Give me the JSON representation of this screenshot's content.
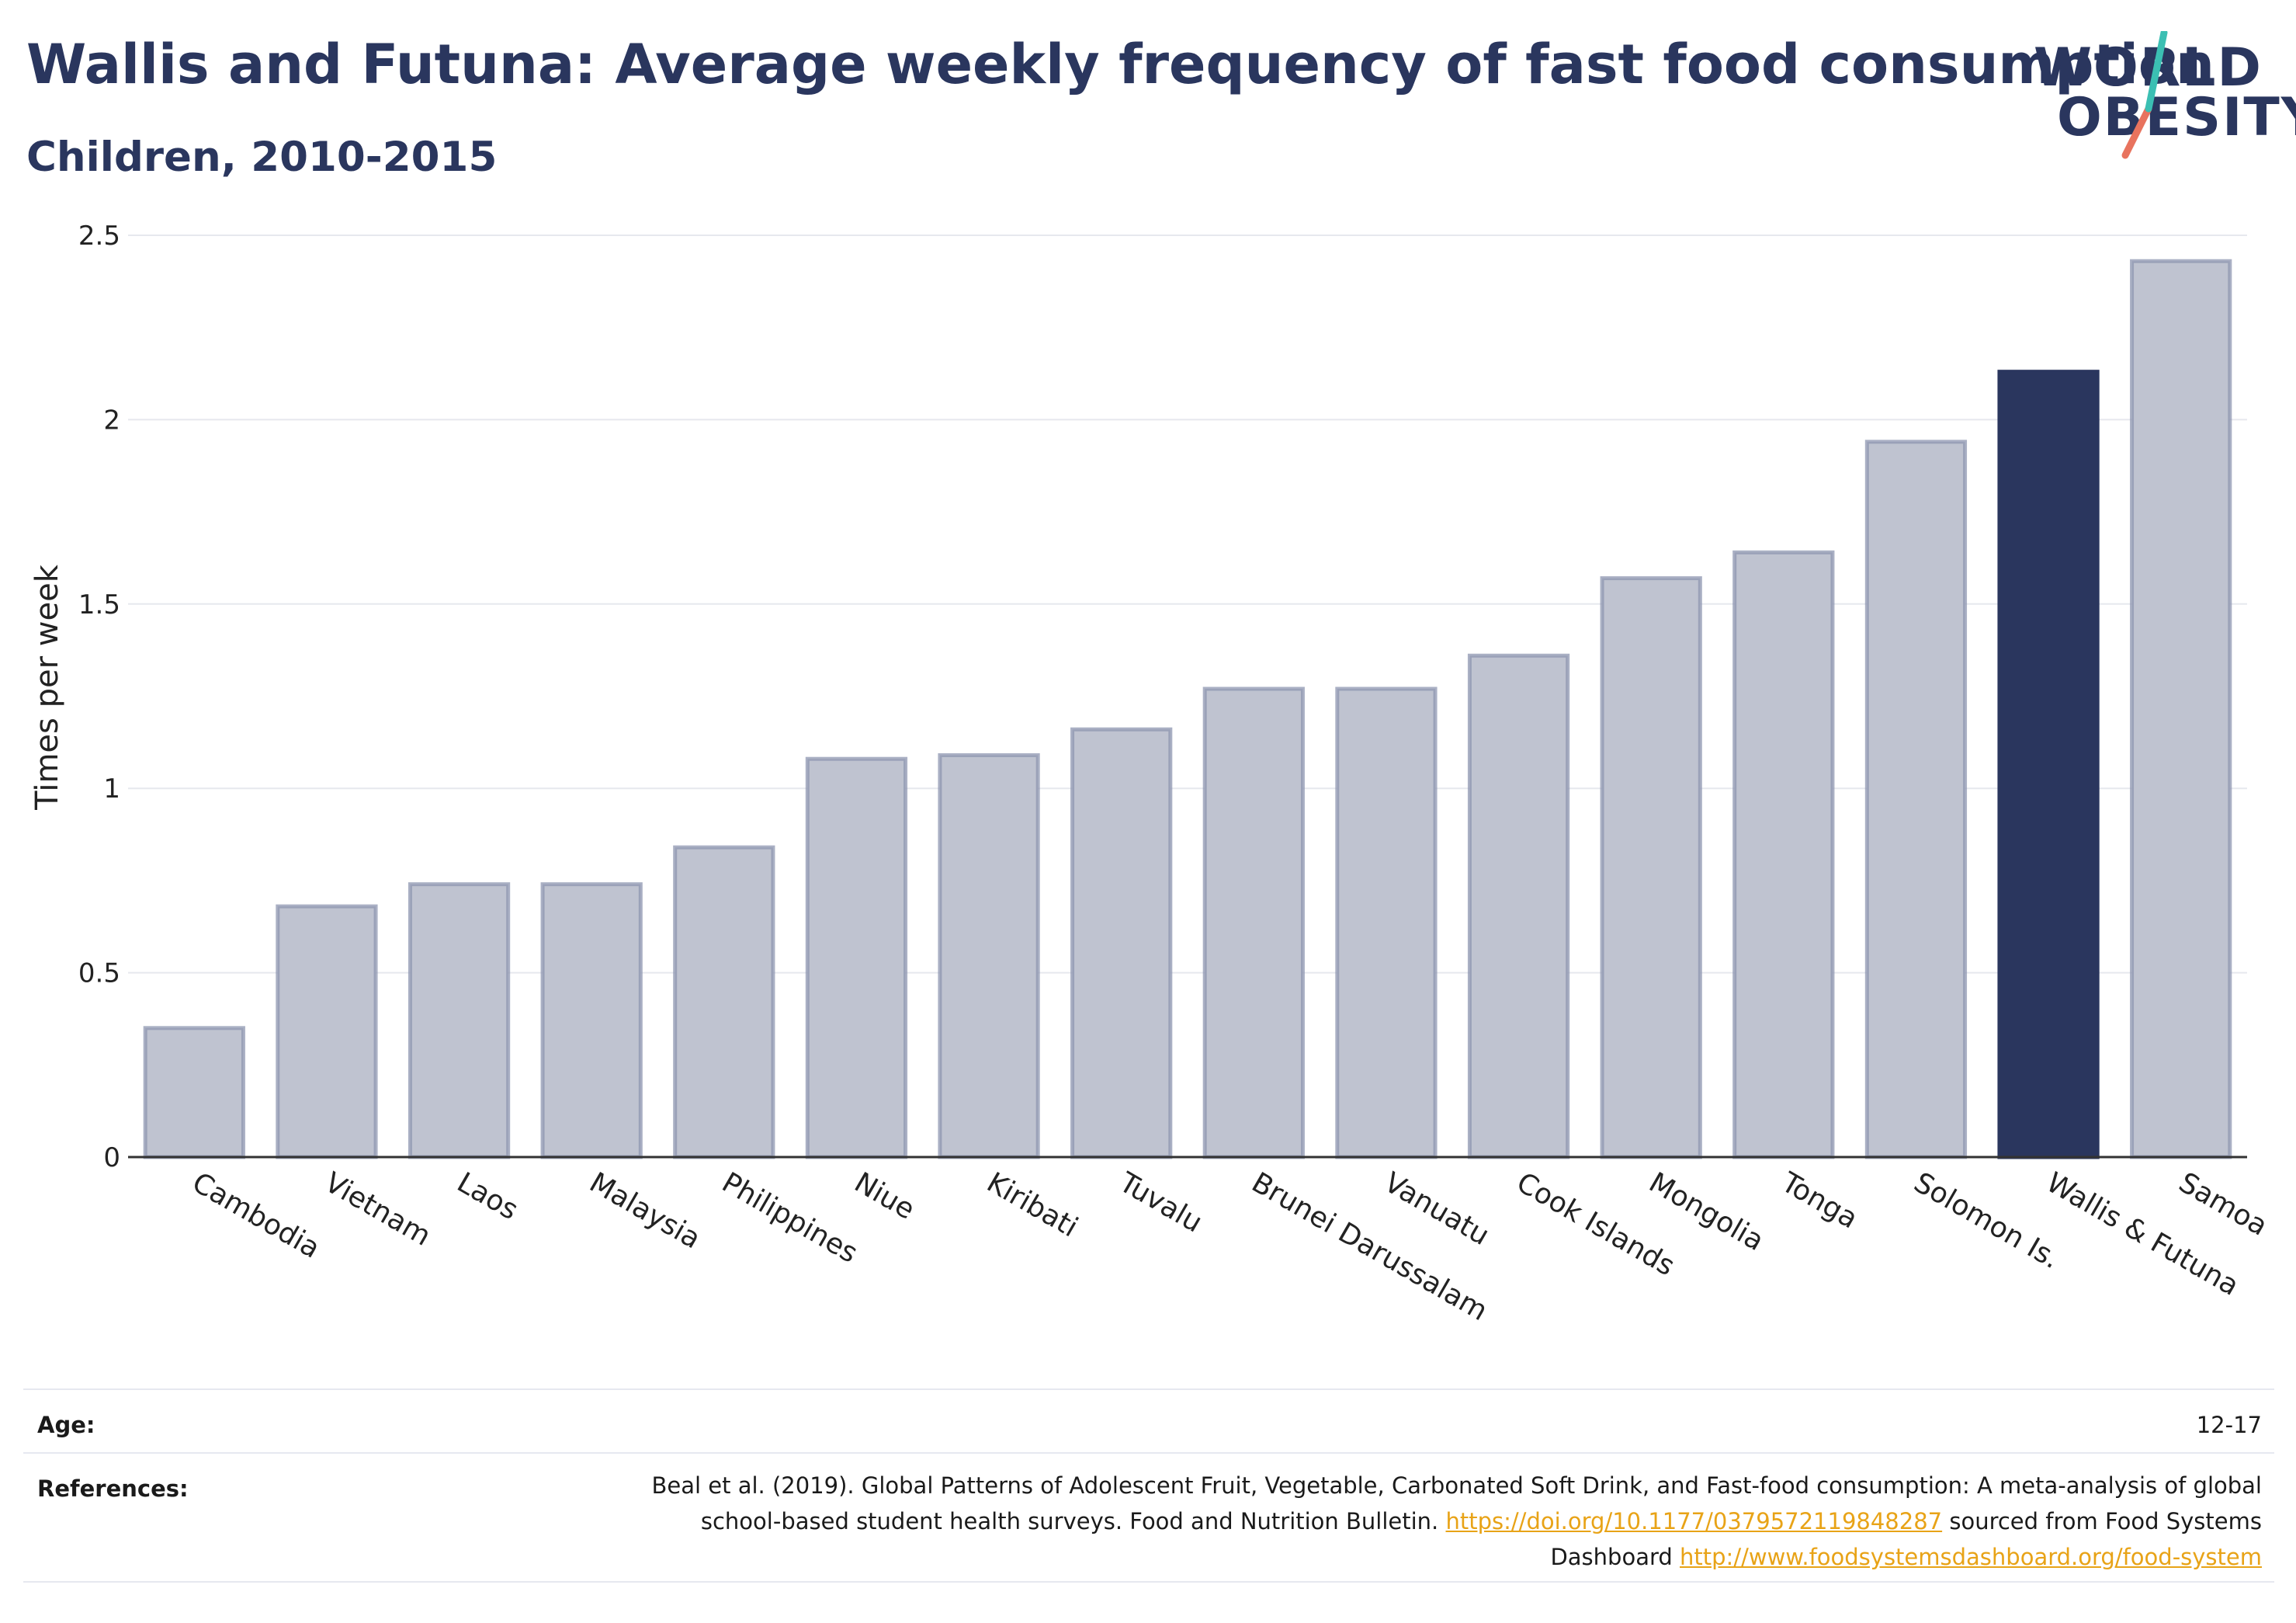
{
  "header": {
    "title": "Wallis and Futuna: Average weekly frequency of fast food consumption",
    "subtitle": "Children, 2010-2015"
  },
  "logo": {
    "line1": "WORLD",
    "line2": "OBESITY"
  },
  "chart_data": {
    "type": "bar",
    "ylabel": "Times per week",
    "xlabel": "",
    "ylim": [
      0,
      2.5
    ],
    "yticks": [
      "0",
      "0.5",
      "1",
      "1.5",
      "2",
      "2.5"
    ],
    "grid": true,
    "categories": [
      "Cambodia",
      "Vietnam",
      "Laos",
      "Malaysia",
      "Philippines",
      "Niue",
      "Kiribati",
      "Tuvalu",
      "Brunei Darussalam",
      "Vanuatu",
      "Cook Islands",
      "Mongolia",
      "Tonga",
      "Solomon Is.",
      "Wallis & Futuna",
      "Samoa"
    ],
    "values": [
      0.35,
      0.68,
      0.74,
      0.74,
      0.84,
      1.08,
      1.09,
      1.16,
      1.27,
      1.27,
      1.36,
      1.57,
      1.64,
      1.94,
      2.13,
      2.43
    ],
    "highlight": "Wallis & Futuna",
    "colors": {
      "bar": "#bfc3d0",
      "bar_border": "#8e96b0",
      "highlight": "#2a365e"
    }
  },
  "footer": {
    "age_label": "Age:",
    "age_value": "12-17",
    "references_label": "References:",
    "ref_text_1": "Beal et al. (2019). Global Patterns of Adolescent Fruit, Vegetable, Carbonated Soft Drink, and Fast-food consumption: A meta-analysis of global school-based student health surveys. Food and Nutrition Bulletin. ",
    "ref_link_1": "https://doi.org/10.1177/0379572119848287",
    "ref_text_2": " sourced from Food Systems Dashboard ",
    "ref_link_2": "http://www.foodsystemsdashboard.org/food-system"
  }
}
